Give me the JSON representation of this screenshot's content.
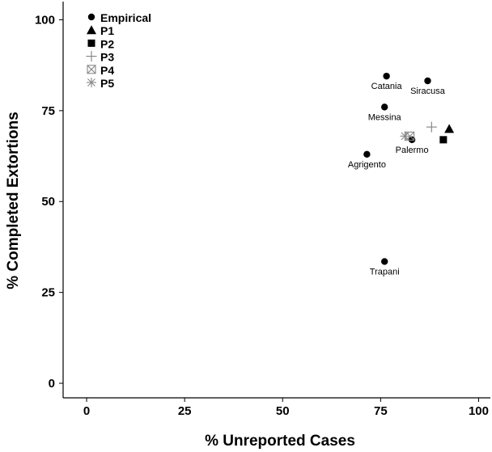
{
  "chart_data": {
    "type": "scatter",
    "xlabel": "% Unreported Cases",
    "ylabel": "% Completed Extortions",
    "xlim": [
      -6,
      103
    ],
    "ylim": [
      -4,
      105
    ],
    "xticks": [
      "0",
      "25",
      "50",
      "75",
      "100"
    ],
    "yticks": [
      "0",
      "25",
      "50",
      "75",
      "100"
    ],
    "xtick_values": [
      0,
      25,
      50,
      75,
      100
    ],
    "ytick_values": [
      0,
      25,
      50,
      75,
      100
    ],
    "grid": false,
    "legend_position": "top-left",
    "series": [
      {
        "name": "Empirical",
        "marker": "circle",
        "points": [
          {
            "x": 76.5,
            "y": 84.5,
            "label": "Catania"
          },
          {
            "x": 87.0,
            "y": 83.2,
            "label": "Siracusa"
          },
          {
            "x": 76.0,
            "y": 76.0,
            "label": "Messina"
          },
          {
            "x": 83.0,
            "y": 67.0,
            "label": "Palermo"
          },
          {
            "x": 71.5,
            "y": 63.0,
            "label": "Agrigento"
          },
          {
            "x": 76.0,
            "y": 33.5,
            "label": "Trapani"
          }
        ]
      },
      {
        "name": "P1",
        "marker": "triangle",
        "points": [
          {
            "x": 92.5,
            "y": 70.0
          }
        ]
      },
      {
        "name": "P2",
        "marker": "square",
        "points": [
          {
            "x": 91.0,
            "y": 67.0
          }
        ]
      },
      {
        "name": "P3",
        "marker": "plus",
        "points": [
          {
            "x": 88.0,
            "y": 70.5
          }
        ]
      },
      {
        "name": "P4",
        "marker": "boxx",
        "points": [
          {
            "x": 82.5,
            "y": 68.0
          }
        ]
      },
      {
        "name": "P5",
        "marker": "asterisk",
        "points": [
          {
            "x": 81.2,
            "y": 68.0
          }
        ]
      }
    ],
    "colors": {
      "dark": "#000000",
      "grey": "#888888",
      "axis": "#000000"
    }
  }
}
